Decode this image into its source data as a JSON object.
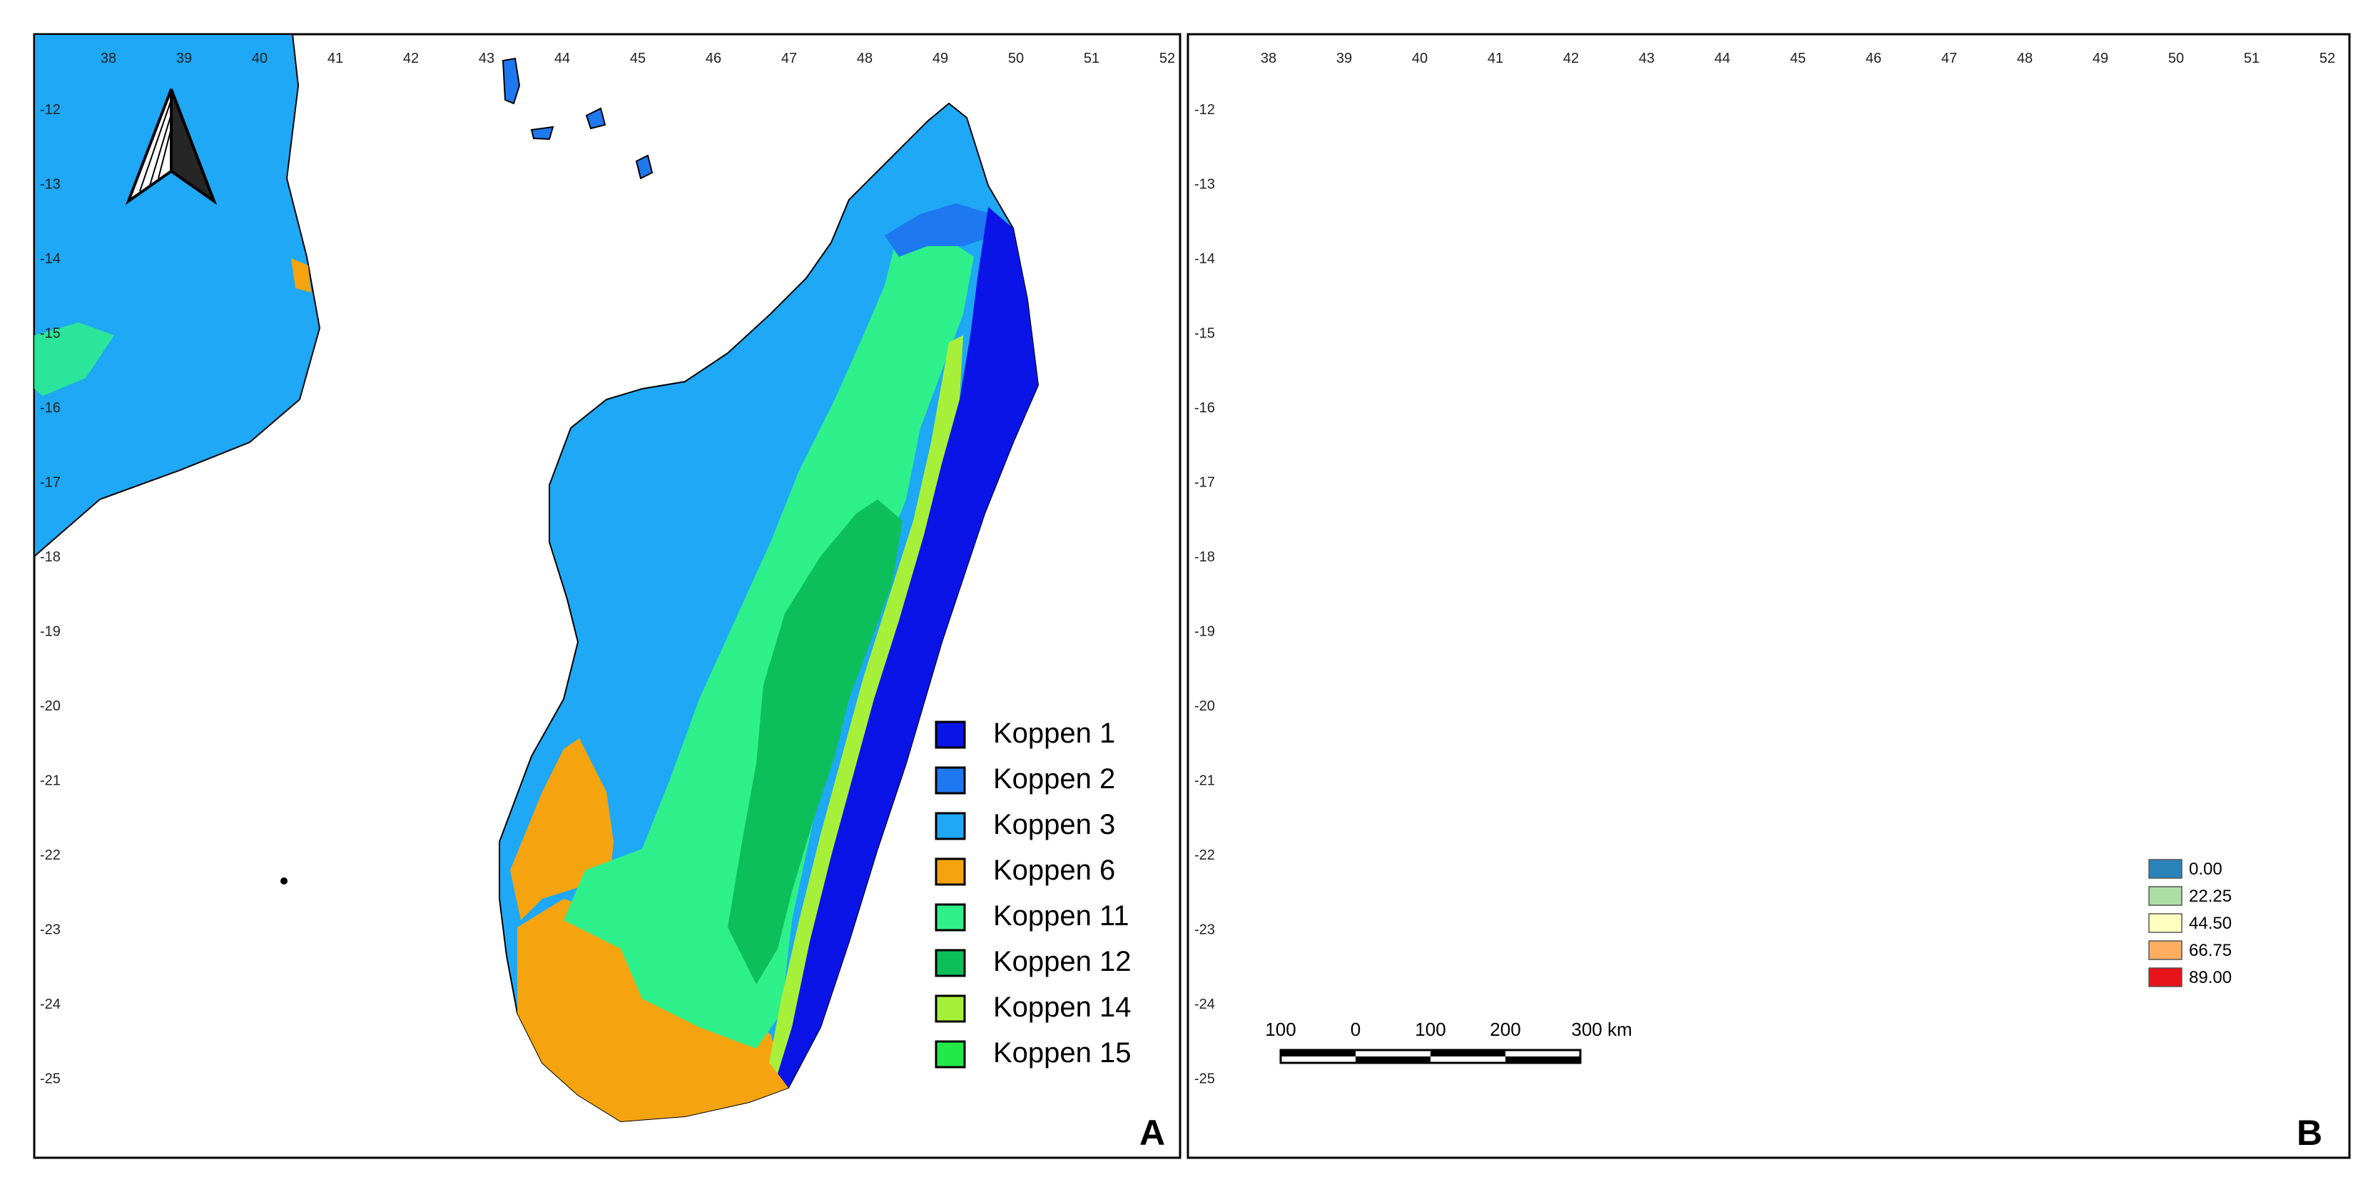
{
  "colors": {
    "sea": "#ffffff",
    "koppen_1": "#0a14e6",
    "koppen_2": "#1e78f0",
    "koppen_3": "#1ea8f5",
    "koppen_6": "#f5a40f",
    "koppen_11": "#2ef08a",
    "koppen_12": "#0cbf5a",
    "koppen_14": "#a6f03a",
    "koppen_15": "#22e84a",
    "elev_0": "#2b83ba",
    "elev_22": "#abdda4",
    "elev_44": "#ffffbf",
    "elev_66": "#fdae61",
    "elev_89": "#e8141c"
  },
  "map_a": {
    "panel_label": "A",
    "lon_ticks": [
      "38",
      "39",
      "40",
      "41",
      "42",
      "43",
      "44",
      "45",
      "46",
      "47",
      "48",
      "49",
      "50",
      "51",
      "52"
    ],
    "lat_ticks": [
      "-12",
      "-13",
      "-14",
      "-15",
      "-16",
      "-17",
      "-18",
      "-19",
      "-20",
      "-21",
      "-22",
      "-23",
      "-24",
      "-25"
    ],
    "legend": [
      {
        "label": "Koppen 1",
        "color": "#0a14e6"
      },
      {
        "label": "Koppen 2",
        "color": "#1e78f0"
      },
      {
        "label": "Koppen 3",
        "color": "#1ea8f5"
      },
      {
        "label": "Koppen 6",
        "color": "#f5a40f"
      },
      {
        "label": "Koppen 11",
        "color": "#2ef08a"
      },
      {
        "label": "Koppen 12",
        "color": "#0cbf5a"
      },
      {
        "label": "Koppen 14",
        "color": "#a6f03a"
      },
      {
        "label": "Koppen 15",
        "color": "#22e84a"
      }
    ]
  },
  "map_b": {
    "panel_label": "B",
    "lon_ticks": [
      "38",
      "39",
      "40",
      "41",
      "42",
      "43",
      "44",
      "45",
      "46",
      "47",
      "48",
      "49",
      "50",
      "51",
      "52"
    ],
    "lat_ticks": [
      "-12",
      "-13",
      "-14",
      "-15",
      "-16",
      "-17",
      "-18",
      "-19",
      "-20",
      "-21",
      "-22",
      "-23",
      "-24",
      "-25"
    ],
    "legend": [
      {
        "label": "0.00",
        "color": "#2b83ba"
      },
      {
        "label": "22.25",
        "color": "#abdda4"
      },
      {
        "label": "44.50",
        "color": "#ffffbf"
      },
      {
        "label": "66.75",
        "color": "#fdae61"
      },
      {
        "label": "89.00",
        "color": "#e8141c"
      }
    ],
    "scale_bar": {
      "labels": [
        "100",
        "0",
        "100",
        "200",
        "300 km"
      ]
    }
  }
}
